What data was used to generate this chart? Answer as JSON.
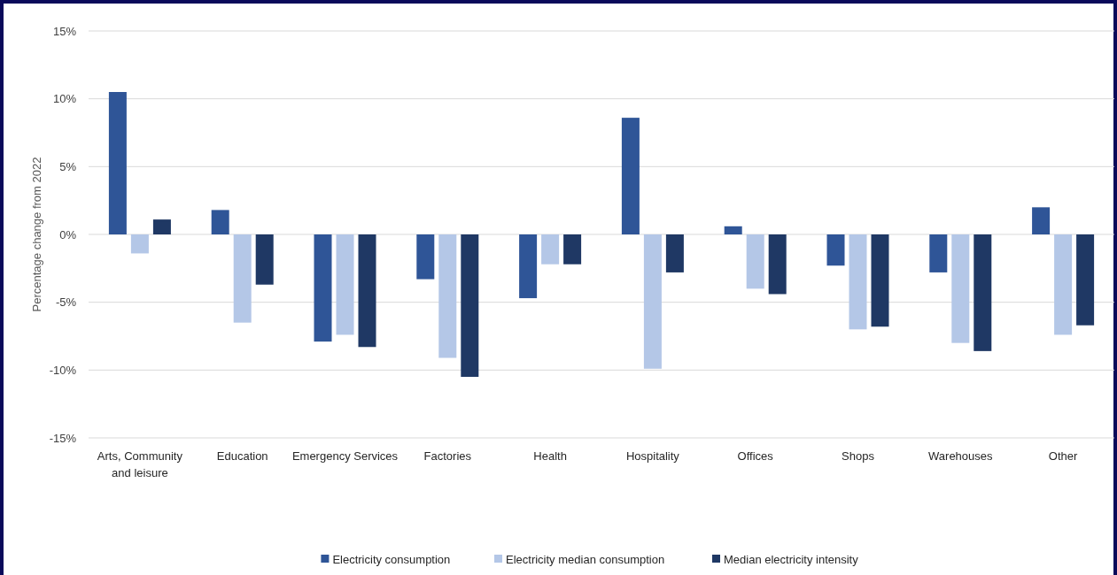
{
  "chart_data": {
    "type": "bar",
    "ylabel": "Percentage change from 2022",
    "categories": [
      "Arts, Community and leisure",
      "Education",
      "Emergency Services",
      "Factories",
      "Health",
      "Hospitality",
      "Offices",
      "Shops",
      "Warehouses",
      "Other"
    ],
    "series": [
      {
        "name": "Electricity consumption",
        "color": "#2f5597",
        "values": [
          10.5,
          1.8,
          -7.9,
          -3.3,
          -4.7,
          8.6,
          0.6,
          -2.3,
          -2.8,
          2.0
        ]
      },
      {
        "name": "Electricity median consumption",
        "color": "#b4c7e7",
        "values": [
          -1.4,
          -6.5,
          -7.4,
          -9.1,
          -2.2,
          -9.9,
          -4.0,
          -7.0,
          -8.0,
          -7.4
        ]
      },
      {
        "name": "Median electricity intensity",
        "color": "#1f3864",
        "values": [
          1.1,
          -3.7,
          -8.3,
          -10.5,
          -2.2,
          -2.8,
          -4.4,
          -6.8,
          -8.6,
          -6.7
        ]
      }
    ],
    "ylim": [
      -15,
      15
    ],
    "yticks": [
      {
        "value": -15,
        "label": "-15%"
      },
      {
        "value": -10,
        "label": "-10%"
      },
      {
        "value": -5,
        "label": "-5%"
      },
      {
        "value": 0,
        "label": "0%"
      },
      {
        "value": 5,
        "label": "5%"
      },
      {
        "value": 10,
        "label": "10%"
      },
      {
        "value": 15,
        "label": "15%"
      }
    ],
    "grid": "y",
    "legend": "bottom"
  }
}
